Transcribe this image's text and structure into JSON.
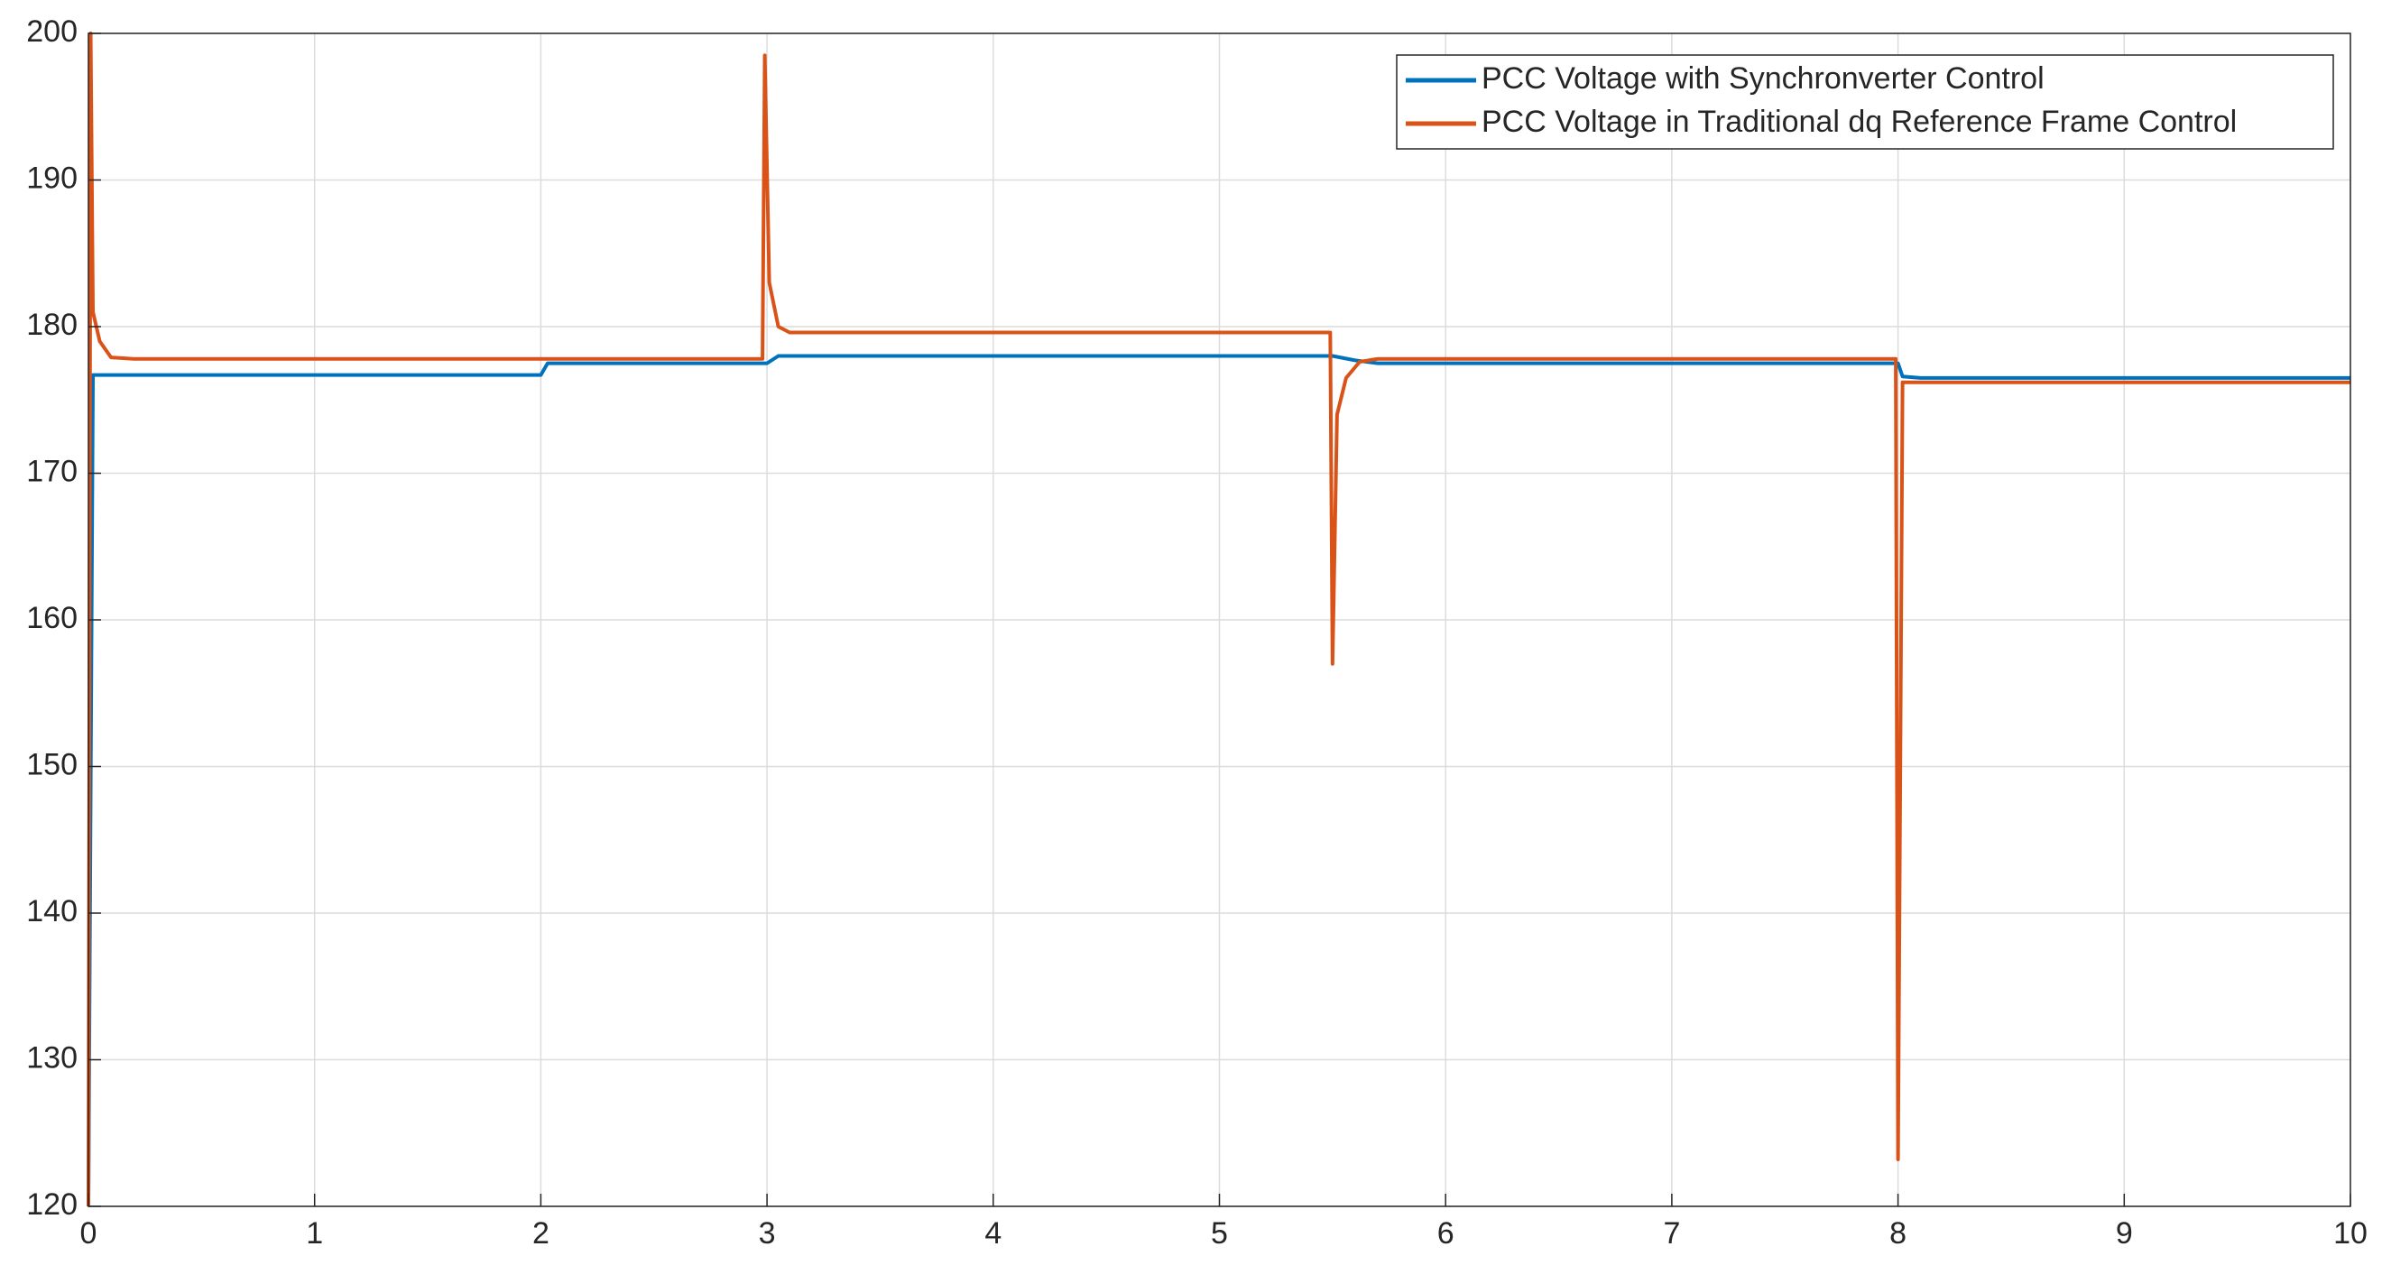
{
  "chart_data": {
    "type": "line",
    "xlim": [
      0,
      10
    ],
    "xticks": [
      0,
      1,
      2,
      3,
      4,
      5,
      6,
      7,
      8,
      9,
      10
    ],
    "ylim": [
      120,
      200
    ],
    "yticks": [
      120,
      130,
      140,
      150,
      160,
      170,
      180,
      190,
      200
    ],
    "grid": true,
    "legend": "top-right",
    "series": [
      {
        "name": "PCC Voltage with Synchronverter Control",
        "color": "#0072BD",
        "x": [
          0,
          0.02,
          2.0,
          2.03,
          3.0,
          3.05,
          5.5,
          5.6,
          5.7,
          8.0,
          8.02,
          8.1,
          10
        ],
        "values": [
          120,
          176.7,
          176.7,
          177.5,
          177.5,
          178,
          178,
          177.7,
          177.5,
          177.5,
          176.6,
          176.5,
          176.5
        ]
      },
      {
        "name": "PCC Voltage in Traditional dq Reference Frame Control",
        "color": "#D95319",
        "x": [
          0,
          0.01,
          0.02,
          0.05,
          0.1,
          0.2,
          2.98,
          2.99,
          3.01,
          3.05,
          3.1,
          5.49,
          5.5,
          5.52,
          5.56,
          5.62,
          5.7,
          7.99,
          8.0,
          8.02,
          10
        ],
        "values": [
          120,
          200,
          181,
          179,
          177.9,
          177.8,
          177.8,
          198.5,
          183,
          180,
          179.6,
          179.6,
          157,
          174,
          176.5,
          177.6,
          177.8,
          177.8,
          123.2,
          176.2,
          176.2
        ]
      }
    ]
  }
}
